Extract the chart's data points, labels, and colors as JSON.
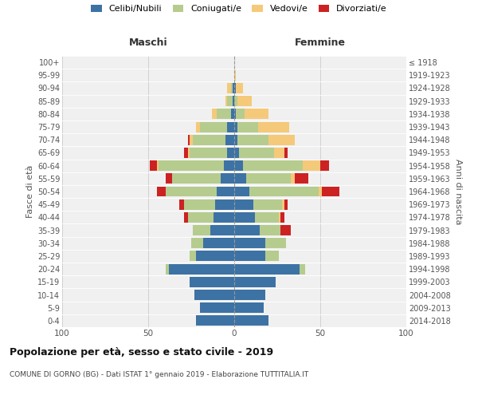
{
  "age_groups": [
    "0-4",
    "5-9",
    "10-14",
    "15-19",
    "20-24",
    "25-29",
    "30-34",
    "35-39",
    "40-44",
    "45-49",
    "50-54",
    "55-59",
    "60-64",
    "65-69",
    "70-74",
    "75-79",
    "80-84",
    "85-89",
    "90-94",
    "95-99",
    "100+"
  ],
  "birth_years": [
    "2014-2018",
    "2009-2013",
    "2004-2008",
    "1999-2003",
    "1994-1998",
    "1989-1993",
    "1984-1988",
    "1979-1983",
    "1974-1978",
    "1969-1973",
    "1964-1968",
    "1959-1963",
    "1954-1958",
    "1949-1953",
    "1944-1948",
    "1939-1943",
    "1934-1938",
    "1929-1933",
    "1924-1928",
    "1919-1923",
    "≤ 1918"
  ],
  "colors": {
    "celibi": "#3d72a4",
    "coniugati": "#b5cc8e",
    "vedovi": "#f5c97a",
    "divorziati": "#cc2222"
  },
  "maschi": {
    "celibi": [
      22,
      20,
      23,
      26,
      38,
      22,
      18,
      14,
      12,
      11,
      10,
      8,
      6,
      4,
      5,
      4,
      2,
      1,
      1,
      0,
      0
    ],
    "coniugati": [
      0,
      0,
      0,
      0,
      2,
      4,
      7,
      10,
      15,
      18,
      30,
      28,
      38,
      22,
      19,
      16,
      8,
      3,
      1,
      0,
      0
    ],
    "vedovi": [
      0,
      0,
      0,
      0,
      0,
      0,
      0,
      0,
      0,
      0,
      0,
      0,
      1,
      1,
      2,
      2,
      3,
      1,
      2,
      0,
      0
    ],
    "divorziati": [
      0,
      0,
      0,
      0,
      0,
      0,
      0,
      0,
      2,
      3,
      5,
      4,
      4,
      2,
      1,
      0,
      0,
      0,
      0,
      0,
      0
    ]
  },
  "femmine": {
    "nubili": [
      20,
      17,
      18,
      24,
      38,
      18,
      18,
      15,
      12,
      11,
      9,
      7,
      5,
      3,
      2,
      2,
      1,
      0,
      1,
      0,
      0
    ],
    "coniugate": [
      0,
      0,
      0,
      0,
      3,
      8,
      12,
      12,
      14,
      17,
      40,
      26,
      35,
      20,
      18,
      12,
      5,
      2,
      0,
      0,
      0
    ],
    "vedove": [
      0,
      0,
      0,
      0,
      0,
      0,
      0,
      0,
      1,
      1,
      2,
      2,
      10,
      6,
      15,
      18,
      14,
      8,
      4,
      1,
      0
    ],
    "divorziate": [
      0,
      0,
      0,
      0,
      0,
      0,
      0,
      6,
      2,
      2,
      10,
      8,
      5,
      2,
      0,
      0,
      0,
      0,
      0,
      0,
      0
    ]
  },
  "xlim": [
    -100,
    100
  ],
  "xlabel_left": "Maschi",
  "xlabel_right": "Femmine",
  "ylabel_left": "Fasce di età",
  "ylabel_right": "Anni di nascita",
  "title": "Popolazione per età, sesso e stato civile - 2019",
  "subtitle": "COMUNE DI GORNO (BG) - Dati ISTAT 1° gennaio 2019 - Elaborazione TUTTITALIA.IT",
  "legend_labels": [
    "Celibi/Nubili",
    "Coniugati/e",
    "Vedovi/e",
    "Divorziati/e"
  ],
  "xticks": [
    -100,
    -50,
    0,
    50,
    100
  ],
  "xticklabels": [
    "100",
    "50",
    "0",
    "50",
    "100"
  ],
  "bg_color": "#f0f0f0",
  "grid_color": "#cccccc"
}
